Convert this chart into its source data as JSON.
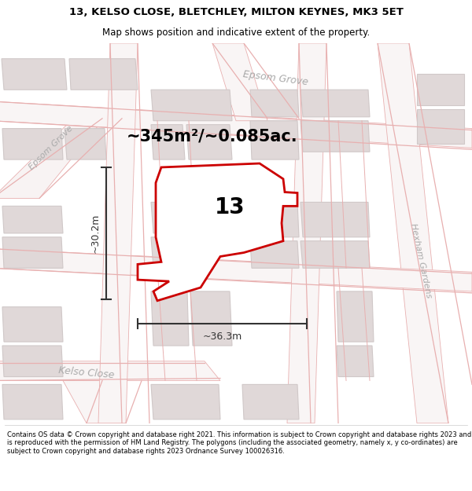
{
  "title_line1": "13, KELSO CLOSE, BLETCHLEY, MILTON KEYNES, MK3 5ET",
  "title_line2": "Map shows position and indicative extent of the property.",
  "area_text": "~345m²/~0.085ac.",
  "label_number": "13",
  "dim_width": "~36.3m",
  "dim_height": "~30.2m",
  "footer_text": "Contains OS data © Crown copyright and database right 2021. This information is subject to Crown copyright and database rights 2023 and is reproduced with the permission of HM Land Registry. The polygons (including the associated geometry, namely x, y co-ordinates) are subject to Crown copyright and database rights 2023 Ordnance Survey 100026316.",
  "map_bg": "#f7f4f4",
  "road_fill": "#ffffff",
  "road_edge": "#e8b8b8",
  "building_fill": "#e0d8d8",
  "building_edge": "#d0c8c8",
  "plot_edge": "#cc0000",
  "street_label_color": "#aaaaaa",
  "dim_color": "#333333",
  "title_color": "#000000"
}
